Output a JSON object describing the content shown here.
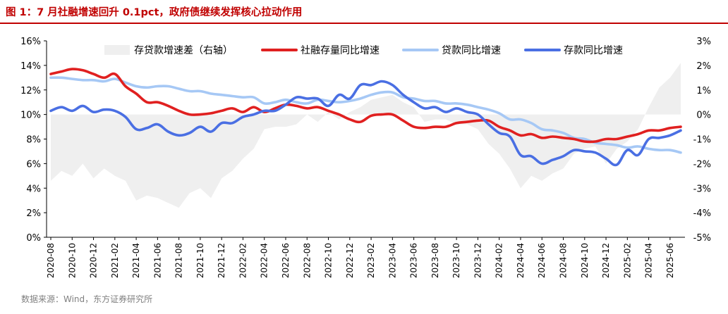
{
  "header": {
    "title": "图 1：7 月社融增速回升 0.1pct，政府债继续发挥核心拉动作用",
    "source": "数据来源：Wind，东方证券研究所"
  },
  "chart_data": {
    "type": "line",
    "title": "图 1：7 月社融增速回升 0.1pct，政府债继续发挥核心拉动作用",
    "x": [
      "2020-08",
      "2020-09",
      "2020-10",
      "2020-11",
      "2020-12",
      "2021-01",
      "2021-02",
      "2021-03",
      "2021-04",
      "2021-05",
      "2021-06",
      "2021-07",
      "2021-08",
      "2021-09",
      "2021-10",
      "2021-11",
      "2021-12",
      "2022-01",
      "2022-02",
      "2022-03",
      "2022-04",
      "2022-05",
      "2022-06",
      "2022-07",
      "2022-08",
      "2022-09",
      "2022-10",
      "2022-11",
      "2022-12",
      "2023-01",
      "2023-02",
      "2023-03",
      "2023-04",
      "2023-05",
      "2023-06",
      "2023-07",
      "2023-08",
      "2023-09",
      "2023-10",
      "2023-11",
      "2023-12",
      "2024-01",
      "2024-02",
      "2024-03",
      "2024-04",
      "2024-05",
      "2024-06",
      "2024-07",
      "2024-08",
      "2024-09",
      "2024-10",
      "2024-11",
      "2024-12",
      "2025-01",
      "2025-02",
      "2025-03",
      "2025-04",
      "2025-05",
      "2025-06",
      "2025-07"
    ],
    "x_tick_labels": [
      "2020-08",
      "2020-10",
      "2020-12",
      "2021-02",
      "2021-04",
      "2021-06",
      "2021-08",
      "2021-10",
      "2021-12",
      "2022-02",
      "2022-04",
      "2022-06",
      "2022-08",
      "2022-10",
      "2022-12",
      "2023-02",
      "2023-04",
      "2023-06",
      "2023-08",
      "2023-10",
      "2023-12",
      "2024-02",
      "2024-04",
      "2024-06",
      "2024-08",
      "2024-10",
      "2024-12",
      "2025-02",
      "2025-04",
      "2025-06"
    ],
    "left_axis": {
      "ylim": [
        0,
        16
      ],
      "ticks": [
        "0%",
        "2%",
        "4%",
        "6%",
        "8%",
        "10%",
        "12%",
        "14%",
        "16%"
      ]
    },
    "right_axis": {
      "ylim": [
        -5,
        3
      ],
      "ticks": [
        "-5%",
        "-4%",
        "-3%",
        "-2%",
        "-1%",
        "0%",
        "1%",
        "2%",
        "3%"
      ]
    },
    "legend": [
      "存贷款增速差（右轴）",
      "社融存量同比增速",
      "贷款同比增速",
      "存款同比增速"
    ],
    "series": [
      {
        "name": "存贷款增速差（右轴）",
        "axis": "right",
        "kind": "area",
        "color": "#efefef",
        "values": [
          -2.7,
          -2.3,
          -2.5,
          -2.0,
          -2.6,
          -2.2,
          -2.5,
          -2.7,
          -3.5,
          -3.3,
          -3.4,
          -3.6,
          -3.8,
          -3.2,
          -3.0,
          -3.4,
          -2.6,
          -2.3,
          -1.8,
          -1.4,
          -0.6,
          -0.5,
          -0.5,
          -0.4,
          0.0,
          -0.3,
          0.1,
          -0.2,
          0.1,
          0.3,
          0.6,
          0.7,
          0.8,
          0.5,
          0.3,
          -0.3,
          -0.2,
          -0.2,
          -0.4,
          -0.4,
          -0.6,
          -1.2,
          -1.6,
          -2.2,
          -3.0,
          -2.5,
          -2.7,
          -2.4,
          -2.2,
          -1.6,
          -1.4,
          -1.3,
          -2.0,
          -1.4,
          -1.1,
          -0.6,
          0.3,
          1.1,
          1.5,
          2.1
        ]
      },
      {
        "name": "社融存量同比增速",
        "axis": "left",
        "kind": "line",
        "color": "#e02020",
        "values": [
          13.3,
          13.5,
          13.7,
          13.6,
          13.3,
          13.0,
          13.3,
          12.3,
          11.7,
          11.0,
          11.0,
          10.7,
          10.3,
          10.0,
          10.0,
          10.1,
          10.3,
          10.5,
          10.2,
          10.6,
          10.2,
          10.5,
          10.8,
          10.7,
          10.5,
          10.6,
          10.3,
          10.0,
          9.6,
          9.4,
          9.9,
          10.0,
          10.0,
          9.5,
          9.0,
          8.9,
          9.0,
          9.0,
          9.3,
          9.4,
          9.5,
          9.5,
          9.0,
          8.7,
          8.3,
          8.4,
          8.1,
          8.2,
          8.1,
          8.0,
          7.8,
          7.8,
          8.0,
          8.0,
          8.2,
          8.4,
          8.7,
          8.7,
          8.9,
          9.0
        ]
      },
      {
        "name": "贷款同比增速",
        "axis": "left",
        "kind": "line",
        "color": "#a6c8f5",
        "values": [
          13.0,
          13.0,
          12.9,
          12.8,
          12.8,
          12.7,
          12.9,
          12.6,
          12.3,
          12.2,
          12.3,
          12.3,
          12.1,
          11.9,
          11.9,
          11.7,
          11.6,
          11.5,
          11.4,
          11.4,
          10.9,
          11.0,
          11.2,
          11.0,
          10.9,
          11.2,
          11.1,
          11.0,
          11.1,
          11.3,
          11.6,
          11.8,
          11.8,
          11.4,
          11.3,
          11.1,
          11.1,
          10.9,
          10.9,
          10.8,
          10.6,
          10.4,
          10.1,
          9.6,
          9.6,
          9.3,
          8.8,
          8.7,
          8.5,
          8.1,
          8.0,
          7.7,
          7.6,
          7.5,
          7.3,
          7.4,
          7.2,
          7.1,
          7.1,
          6.9
        ]
      },
      {
        "name": "存款同比增速",
        "axis": "left",
        "kind": "line",
        "color": "#4a6fe3",
        "values": [
          10.3,
          10.6,
          10.3,
          10.7,
          10.2,
          10.4,
          10.3,
          9.8,
          8.8,
          8.9,
          9.2,
          8.6,
          8.3,
          8.5,
          9.0,
          8.6,
          9.3,
          9.3,
          9.8,
          10.0,
          10.3,
          10.3,
          10.8,
          11.4,
          11.3,
          11.3,
          10.7,
          11.6,
          11.3,
          12.4,
          12.4,
          12.7,
          12.4,
          11.6,
          11.0,
          10.5,
          10.6,
          10.2,
          10.5,
          10.2,
          10.0,
          9.2,
          8.5,
          8.2,
          6.7,
          6.6,
          6.0,
          6.3,
          6.6,
          7.1,
          7.0,
          6.9,
          6.4,
          5.9,
          7.1,
          6.7,
          8.0,
          8.1,
          8.3,
          8.7
        ]
      }
    ]
  }
}
